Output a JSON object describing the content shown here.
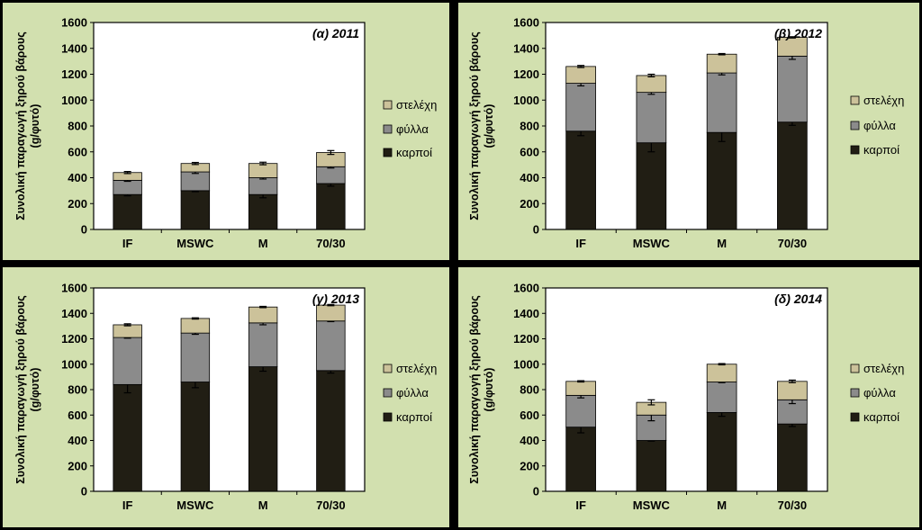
{
  "colors": {
    "karpoi": "#211e14",
    "fylla": "#8b8b8b",
    "stelexi": "#ccc29a",
    "panel_bg": "#d2e0af",
    "plot_bg": "#ffffff"
  },
  "chart_data": [
    {
      "type": "bar",
      "stacked": true,
      "title": "(α) 2011",
      "ylabel": "Συνολική παραγωγή ξηρού βάρους (g/φυτό)",
      "xlabel": "",
      "categories": [
        "IF",
        "MSWC",
        "M",
        "70/30"
      ],
      "yticks": [
        "0",
        "200",
        "400",
        "600",
        "800",
        "1000",
        "1200",
        "1400",
        "1600"
      ],
      "ylim": [
        0,
        1600
      ],
      "legend": [
        "στελέχη",
        "φύλλα",
        "καρποί"
      ],
      "series": [
        {
          "name": "καρποί",
          "values": [
            270,
            300,
            270,
            355
          ],
          "errors": [
            10,
            8,
            25,
            20
          ]
        },
        {
          "name": "φύλλα",
          "values": [
            110,
            145,
            130,
            130
          ],
          "errors": [
            8,
            12,
            10,
            10
          ]
        },
        {
          "name": "στελέχη",
          "values": [
            60,
            65,
            110,
            110
          ],
          "errors": [
            8,
            8,
            10,
            15
          ]
        }
      ]
    },
    {
      "type": "bar",
      "stacked": true,
      "title": "(β) 2012",
      "ylabel": "Συνολική παραγωγή ξηρού βάρους (g/φυτό)",
      "xlabel": "",
      "categories": [
        "IF",
        "MSWC",
        "M",
        "70/30"
      ],
      "yticks": [
        "0",
        "200",
        "400",
        "600",
        "800",
        "1000",
        "1200",
        "1400",
        "1600"
      ],
      "ylim": [
        0,
        1600
      ],
      "legend": [
        "στελέχη",
        "φύλλα",
        "καρποί"
      ],
      "series": [
        {
          "name": "καρποί",
          "values": [
            760,
            670,
            750,
            830
          ],
          "errors": [
            35,
            70,
            70,
            25
          ]
        },
        {
          "name": "φύλλα",
          "values": [
            370,
            390,
            460,
            510
          ],
          "errors": [
            20,
            15,
            15,
            25
          ]
        },
        {
          "name": "στελέχη",
          "values": [
            130,
            130,
            145,
            145
          ],
          "errors": [
            8,
            10,
            5,
            5
          ]
        }
      ]
    },
    {
      "type": "bar",
      "stacked": true,
      "title": "(γ) 2013",
      "ylabel": "Συνολική παραγωγή ξηρού βάρους (g/φυτό)",
      "xlabel": "",
      "categories": [
        "IF",
        "MSWC",
        "M",
        "70/30"
      ],
      "yticks": [
        "0",
        "200",
        "400",
        "600",
        "800",
        "1000",
        "1200",
        "1400",
        "1600"
      ],
      "ylim": [
        0,
        1600
      ],
      "legend": [
        "στελέχη",
        "φύλλα",
        "καρποί"
      ],
      "series": [
        {
          "name": "καρποί",
          "values": [
            840,
            860,
            980,
            950
          ],
          "errors": [
            65,
            45,
            35,
            20
          ]
        },
        {
          "name": "φύλλα",
          "values": [
            370,
            385,
            345,
            390
          ],
          "errors": [
            5,
            10,
            15,
            5
          ]
        },
        {
          "name": "στελέχη",
          "values": [
            100,
            115,
            125,
            125
          ],
          "errors": [
            8,
            5,
            5,
            5
          ]
        }
      ]
    },
    {
      "type": "bar",
      "stacked": true,
      "title": "(δ) 2014",
      "ylabel": "Συνολική παραγωγή ξηρού βάρους (g/φυτό)",
      "xlabel": "",
      "categories": [
        "IF",
        "MSWC",
        "M",
        "70/30"
      ],
      "yticks": [
        "0",
        "200",
        "400",
        "600",
        "800",
        "1000",
        "1200",
        "1400",
        "1600"
      ],
      "ylim": [
        0,
        1600
      ],
      "legend": [
        "στελέχη",
        "φύλλα",
        "καρποί"
      ],
      "series": [
        {
          "name": "καρποί",
          "values": [
            505,
            400,
            620,
            530
          ],
          "errors": [
            45,
            5,
            30,
            20
          ]
        },
        {
          "name": "φύλλα",
          "values": [
            250,
            200,
            240,
            190
          ],
          "errors": [
            20,
            45,
            5,
            30
          ]
        },
        {
          "name": "στελέχη",
          "values": [
            110,
            100,
            140,
            145
          ],
          "errors": [
            5,
            20,
            5,
            10
          ]
        }
      ]
    }
  ]
}
